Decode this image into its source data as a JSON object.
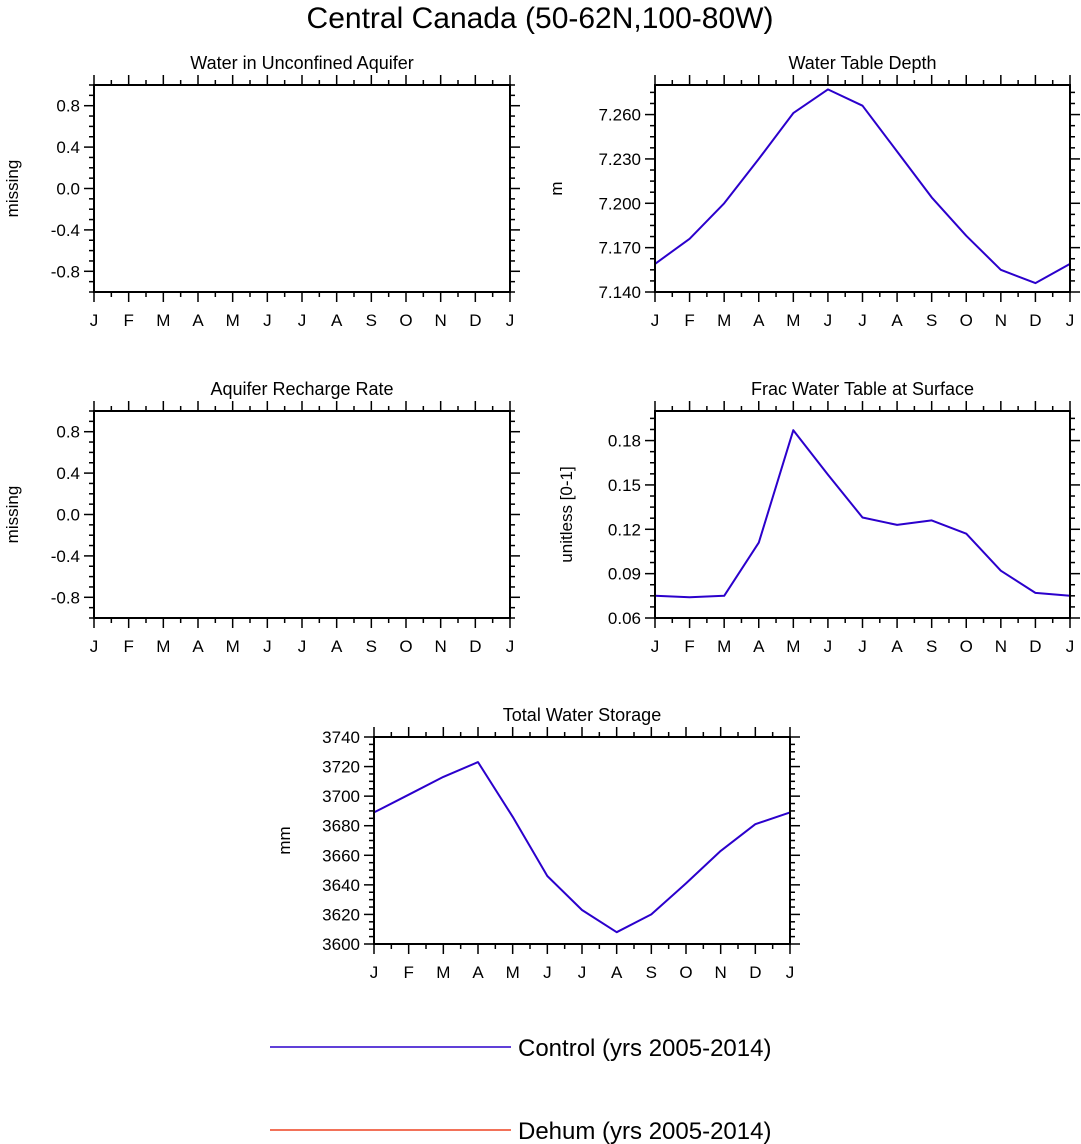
{
  "figure": {
    "title": "Central Canada (50-62N,100-80W)"
  },
  "chart_data": [
    {
      "type": "line",
      "title": "Water in Unconfined Aquifer",
      "xlabel": "",
      "ylabel": "missing",
      "categories": [
        "J",
        "F",
        "M",
        "A",
        "M",
        "J",
        "J",
        "A",
        "S",
        "O",
        "N",
        "D",
        "J"
      ],
      "ylim": [
        -1,
        1
      ],
      "yticks": [
        "0.8",
        "0.4",
        "0.0",
        "-0.4",
        "-0.8"
      ],
      "ytick_values": [
        0.8,
        0.4,
        0.0,
        -0.4,
        -0.8
      ],
      "series": []
    },
    {
      "type": "line",
      "title": "Water Table Depth",
      "xlabel": "",
      "ylabel": "m",
      "categories": [
        "J",
        "F",
        "M",
        "A",
        "M",
        "J",
        "J",
        "A",
        "S",
        "O",
        "N",
        "D",
        "J"
      ],
      "ylim": [
        7.14,
        7.28
      ],
      "yticks": [
        "7.260",
        "7.230",
        "7.200",
        "7.170",
        "7.140"
      ],
      "ytick_values": [
        7.26,
        7.23,
        7.2,
        7.17,
        7.14
      ],
      "series": [
        {
          "name": "Control (yrs 2005-2014)",
          "color": "#2b00cc",
          "values": [
            7.159,
            7.176,
            7.2,
            7.23,
            7.261,
            7.277,
            7.266,
            7.235,
            7.204,
            7.178,
            7.155,
            7.146,
            7.159
          ]
        }
      ]
    },
    {
      "type": "line",
      "title": "Aquifer Recharge Rate",
      "xlabel": "",
      "ylabel": "missing",
      "categories": [
        "J",
        "F",
        "M",
        "A",
        "M",
        "J",
        "J",
        "A",
        "S",
        "O",
        "N",
        "D",
        "J"
      ],
      "ylim": [
        -1,
        1
      ],
      "yticks": [
        "0.8",
        "0.4",
        "0.0",
        "-0.4",
        "-0.8"
      ],
      "ytick_values": [
        0.8,
        0.4,
        0.0,
        -0.4,
        -0.8
      ],
      "series": []
    },
    {
      "type": "line",
      "title": "Frac Water Table at Surface",
      "xlabel": "",
      "ylabel": "unitless [0-1]",
      "categories": [
        "J",
        "F",
        "M",
        "A",
        "M",
        "J",
        "J",
        "A",
        "S",
        "O",
        "N",
        "D",
        "J"
      ],
      "ylim": [
        0.06,
        0.2
      ],
      "yticks": [
        "0.18",
        "0.15",
        "0.12",
        "0.09",
        "0.06"
      ],
      "ytick_values": [
        0.18,
        0.15,
        0.12,
        0.09,
        0.06
      ],
      "series": [
        {
          "name": "Control (yrs 2005-2014)",
          "color": "#2b00cc",
          "values": [
            0.075,
            0.074,
            0.075,
            0.111,
            0.187,
            0.157,
            0.128,
            0.123,
            0.126,
            0.117,
            0.092,
            0.077,
            0.075
          ]
        }
      ]
    },
    {
      "type": "line",
      "title": "Total Water Storage",
      "xlabel": "",
      "ylabel": "mm",
      "categories": [
        "J",
        "F",
        "M",
        "A",
        "M",
        "J",
        "J",
        "A",
        "S",
        "O",
        "N",
        "D",
        "J"
      ],
      "ylim": [
        3600,
        3740
      ],
      "yticks": [
        "3740",
        "3720",
        "3700",
        "3680",
        "3660",
        "3640",
        "3620",
        "3600"
      ],
      "ytick_values": [
        3740,
        3720,
        3700,
        3680,
        3660,
        3640,
        3620,
        3600
      ],
      "series": [
        {
          "name": "Control (yrs 2005-2014)",
          "color": "#2b00cc",
          "values": [
            3689,
            3701,
            3713,
            3723,
            3686,
            3646,
            3623,
            3608,
            3620,
            3641,
            3663,
            3681,
            3689
          ]
        }
      ]
    }
  ],
  "legend": {
    "entries": [
      {
        "label": "Control (yrs 2005-2014)",
        "color": "#2b00cc"
      },
      {
        "label": "Dehum (yrs 2005-2014)",
        "color": "#ee4422"
      }
    ]
  }
}
